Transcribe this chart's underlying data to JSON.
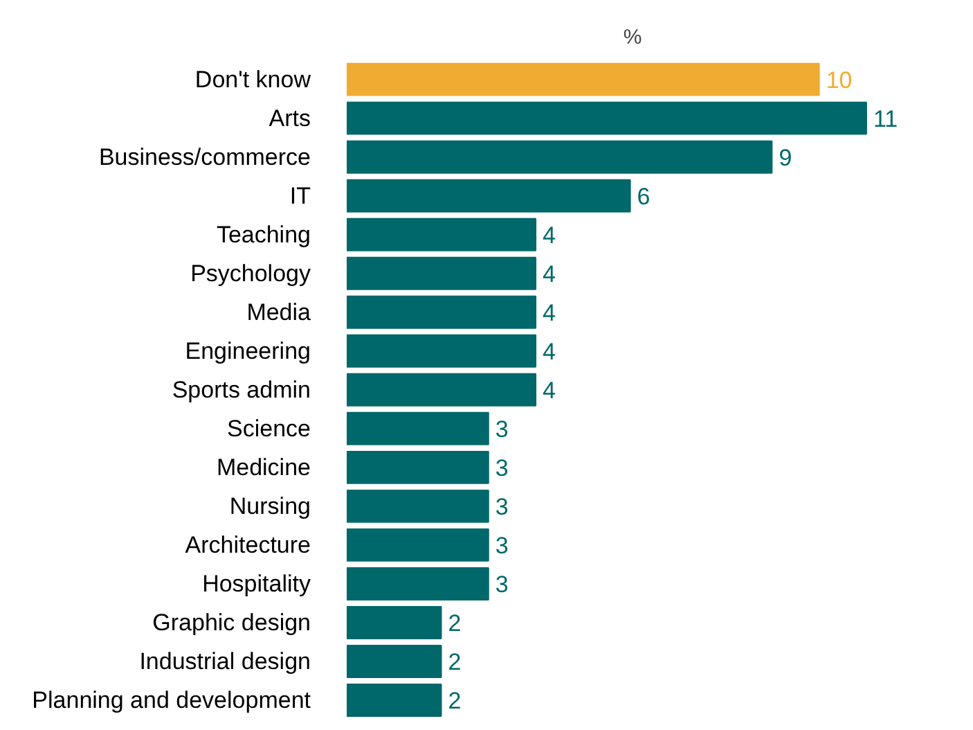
{
  "chart_data": {
    "type": "bar",
    "orientation": "horizontal",
    "title": "%",
    "categories": [
      "Don't know",
      "Arts",
      "Business/commerce",
      "IT",
      "Teaching",
      "Psychology",
      "Media",
      "Engineering",
      "Sports admin",
      "Science",
      "Medicine",
      "Nursing",
      "Architecture",
      "Hospitality",
      "Graphic design",
      "Industrial design",
      "Planning and development"
    ],
    "values": [
      10,
      11,
      9,
      6,
      4,
      4,
      4,
      4,
      4,
      3,
      3,
      3,
      3,
      3,
      2,
      2,
      2
    ],
    "colors": [
      "#f0ac32",
      "#00686a",
      "#00686a",
      "#00686a",
      "#00686a",
      "#00686a",
      "#00686a",
      "#00686a",
      "#00686a",
      "#00686a",
      "#00686a",
      "#00686a",
      "#00686a",
      "#00686a",
      "#00686a",
      "#00686a",
      "#00686a"
    ],
    "data_labels": true,
    "grid": false
  }
}
